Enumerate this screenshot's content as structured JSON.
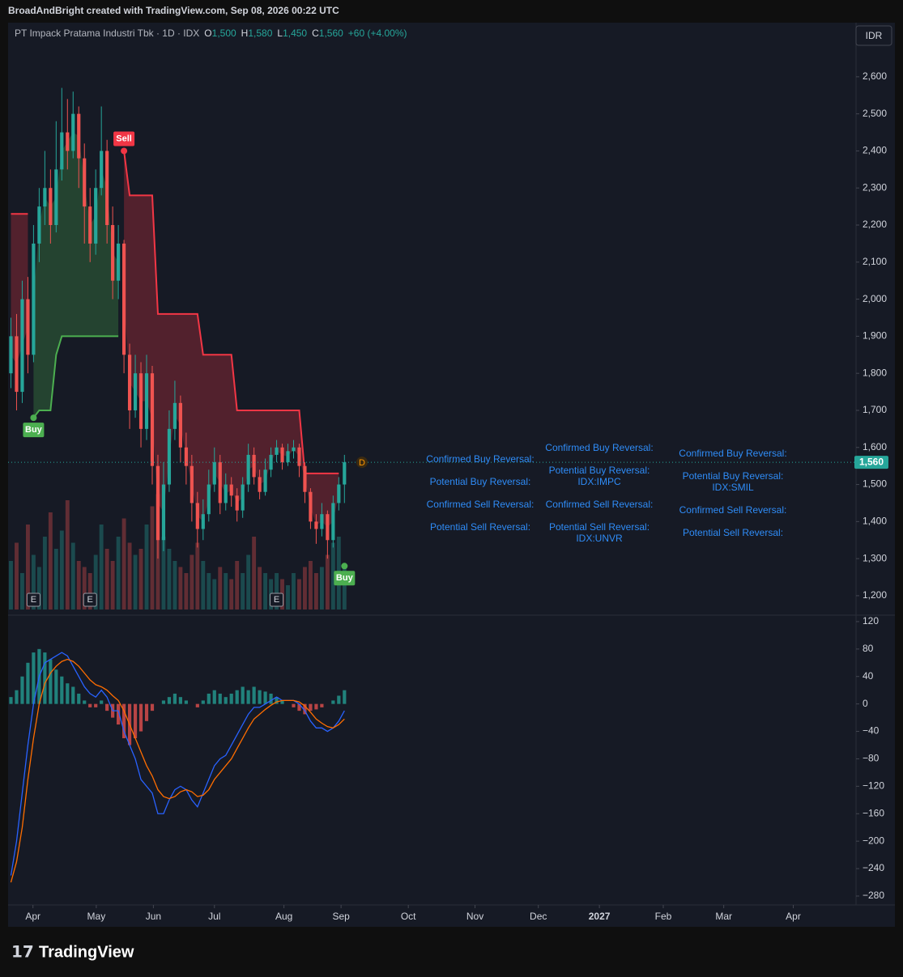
{
  "header": {
    "credit": "BroadAndBright created with TradingView.com, Sep 08, 2026 00:22 UTC"
  },
  "footer": {
    "brand": "TradingView"
  },
  "currency": "IDR",
  "screener": [
    [
      [
        "Confirmed Buy Reversal:"
      ],
      [
        "Potential Buy Reversal:"
      ],
      [
        "Confirmed Sell Reversal:"
      ],
      [
        "Potential Sell Reversal:"
      ]
    ],
    [
      [
        "Confirmed Buy Reversal:"
      ],
      [
        "Potential Buy Reversal:",
        "IDX:IMPC"
      ],
      [
        "Confirmed Sell Reversal:"
      ],
      [
        "Potential Sell Reversal:",
        "IDX:UNVR"
      ]
    ],
    [
      [
        "Confirmed Buy Reversal:"
      ],
      [
        "Potential Buy Reversal:",
        "IDX:SMIL"
      ],
      [
        "Confirmed Sell Reversal:"
      ],
      [
        "Potential Sell Reversal:"
      ]
    ]
  ],
  "chart_data": {
    "type": "candlestick",
    "legend": {
      "title": "PT Impack Pratama Industri Tbk · 1D · IDX",
      "items": [
        {
          "key": "O",
          "value": 1500,
          "label": "1,500"
        },
        {
          "key": "H",
          "value": 1580,
          "label": "1,580"
        },
        {
          "key": "L",
          "value": 1450,
          "label": "1,450"
        },
        {
          "key": "C",
          "value": 1560,
          "label": "1,560"
        }
      ],
      "change": "+60 (+4.00%)"
    },
    "up_color": "#26a69a",
    "down_color": "#ef5350",
    "x": [
      0,
      1,
      2,
      3,
      4,
      5,
      6,
      7,
      8,
      9,
      10,
      11,
      12,
      13,
      14,
      15,
      16,
      17,
      18,
      19,
      20,
      21,
      22,
      23,
      24,
      25,
      26,
      27,
      28,
      29,
      30,
      31,
      32,
      33,
      34,
      35,
      36,
      37,
      38,
      39,
      40,
      41,
      42,
      43,
      44,
      45,
      46,
      47,
      48,
      49,
      50,
      51,
      52,
      53,
      54,
      55,
      56,
      57,
      58,
      59
    ],
    "open": [
      1800,
      1900,
      1750,
      2000,
      1850,
      2150,
      2250,
      2300,
      2200,
      2350,
      2450,
      2400,
      2500,
      2380,
      2250,
      2150,
      2300,
      2400,
      2200,
      2050,
      2150,
      1850,
      1700,
      1800,
      1650,
      1800,
      1550,
      1350,
      1500,
      1650,
      1720,
      1600,
      1550,
      1450,
      1380,
      1420,
      1500,
      1560,
      1450,
      1500,
      1470,
      1430,
      1500,
      1580,
      1520,
      1480,
      1540,
      1580,
      1600,
      1560,
      1590,
      1600,
      1550,
      1480,
      1400,
      1380,
      1420,
      1350,
      1450,
      1500
    ],
    "high": [
      1950,
      1960,
      2050,
      2060,
      2200,
      2300,
      2400,
      2350,
      2480,
      2570,
      2540,
      2560,
      2520,
      2420,
      2300,
      2350,
      2520,
      2430,
      2250,
      2200,
      2160,
      1880,
      1850,
      1830,
      1850,
      1820,
      1580,
      1560,
      1700,
      1780,
      1740,
      1640,
      1580,
      1480,
      1460,
      1540,
      1600,
      1580,
      1530,
      1520,
      1490,
      1520,
      1610,
      1600,
      1540,
      1570,
      1600,
      1620,
      1610,
      1610,
      1620,
      1610,
      1560,
      1490,
      1420,
      1450,
      1430,
      1470,
      1520,
      1580
    ],
    "low": [
      1760,
      1700,
      1720,
      1800,
      1830,
      2100,
      2200,
      2150,
      2180,
      2320,
      2350,
      2380,
      2300,
      2150,
      2100,
      2120,
      2280,
      2150,
      2000,
      2000,
      1800,
      1650,
      1680,
      1600,
      1620,
      1500,
      1300,
      1320,
      1480,
      1620,
      1560,
      1500,
      1400,
      1330,
      1350,
      1400,
      1480,
      1420,
      1430,
      1440,
      1400,
      1410,
      1480,
      1500,
      1460,
      1470,
      1520,
      1560,
      1540,
      1550,
      1570,
      1520,
      1450,
      1380,
      1340,
      1360,
      1300,
      1330,
      1430,
      1450
    ],
    "close": [
      1900,
      1750,
      2000,
      1850,
      2150,
      2250,
      2300,
      2200,
      2350,
      2450,
      2400,
      2500,
      2380,
      2250,
      2150,
      2300,
      2400,
      2200,
      2050,
      2150,
      1850,
      1700,
      1800,
      1650,
      1800,
      1550,
      1350,
      1500,
      1650,
      1720,
      1600,
      1550,
      1450,
      1380,
      1420,
      1500,
      1560,
      1450,
      1500,
      1470,
      1430,
      1500,
      1580,
      1520,
      1480,
      1540,
      1580,
      1600,
      1560,
      1590,
      1600,
      1550,
      1480,
      1400,
      1380,
      1420,
      1350,
      1450,
      1500,
      1560
    ],
    "price_label": "1,560",
    "volume": [
      40,
      55,
      30,
      70,
      45,
      35,
      60,
      80,
      50,
      65,
      90,
      55,
      40,
      35,
      30,
      45,
      70,
      50,
      40,
      60,
      75,
      55,
      45,
      50,
      70,
      85,
      95,
      60,
      50,
      40,
      35,
      30,
      45,
      55,
      40,
      30,
      25,
      35,
      30,
      25,
      40,
      30,
      45,
      60,
      35,
      30,
      25,
      30,
      25,
      20,
      30,
      25,
      35,
      40,
      30,
      35,
      45,
      55,
      60,
      35
    ],
    "volume_lim": [
      0,
      100
    ],
    "supertrend": {
      "up_color": "#4caf50",
      "down_color": "#f23645",
      "up": [
        null,
        null,
        null,
        null,
        1680,
        1700,
        1700,
        1700,
        1850,
        1900,
        1900,
        1900,
        1900,
        1900,
        1900,
        1900,
        1900,
        1900,
        1900,
        1900,
        null,
        null,
        null,
        null,
        null,
        null,
        null,
        null,
        null,
        null,
        null,
        null,
        null,
        null,
        null,
        null,
        null,
        null,
        null,
        null,
        null,
        null,
        null,
        null,
        null,
        null,
        null,
        null,
        null,
        null,
        null,
        null,
        null,
        null,
        null,
        null,
        null,
        null,
        null,
        1280
      ],
      "down": [
        2230,
        2230,
        2230,
        2230,
        null,
        null,
        null,
        null,
        null,
        null,
        null,
        null,
        null,
        null,
        null,
        null,
        null,
        null,
        null,
        null,
        2400,
        2280,
        2280,
        2280,
        2280,
        2280,
        1960,
        1960,
        1960,
        1960,
        1960,
        1960,
        1960,
        1960,
        1850,
        1850,
        1850,
        1850,
        1850,
        1850,
        1700,
        1700,
        1700,
        1700,
        1700,
        1700,
        1700,
        1700,
        1700,
        1700,
        1700,
        1700,
        1530,
        1530,
        1530,
        1530,
        1530,
        1530,
        1530,
        null
      ]
    },
    "signals": [
      {
        "x": 4,
        "value": 1680,
        "label": "Buy"
      },
      {
        "x": 20,
        "value": 2400,
        "label": "Sell"
      },
      {
        "x": 59,
        "value": 1280,
        "label": "Buy"
      }
    ],
    "events": [
      {
        "x": 4,
        "label": "E"
      },
      {
        "x": 14,
        "label": "E"
      },
      {
        "x": 47,
        "label": "E"
      }
    ],
    "dividend_marker": "D",
    "xlim": [
      -0.5,
      149.5
    ],
    "xticks": [
      {
        "value": 3.9,
        "label": "Apr"
      },
      {
        "value": 15.1,
        "label": "May"
      },
      {
        "value": 25.2,
        "label": "Jun"
      },
      {
        "value": 36,
        "label": "Jul"
      },
      {
        "value": 48.3,
        "label": "Aug"
      },
      {
        "value": 58.4,
        "label": "Sep"
      },
      {
        "value": 70.3,
        "label": "Oct"
      },
      {
        "value": 82.1,
        "label": "Nov"
      },
      {
        "value": 93.3,
        "label": "Dec"
      },
      {
        "value": 104.1,
        "label": "2027"
      },
      {
        "value": 115.4,
        "label": "Feb"
      },
      {
        "value": 126.1,
        "label": "Mar"
      },
      {
        "value": 138.4,
        "label": "Apr"
      }
    ],
    "ylim": [
      1154,
      2746
    ],
    "yticks": [
      {
        "value": 1200,
        "label": "1,200"
      },
      {
        "value": 1300,
        "label": "1,300"
      },
      {
        "value": 1400,
        "label": "1,400"
      },
      {
        "value": 1500,
        "label": "1,500"
      },
      {
        "value": 1600,
        "label": "1,600"
      },
      {
        "value": 1700,
        "label": "1,700"
      },
      {
        "value": 1800,
        "label": "1,800"
      },
      {
        "value": 1900,
        "label": "1,900"
      },
      {
        "value": 2000,
        "label": "2,000"
      },
      {
        "value": 2100,
        "label": "2,100"
      },
      {
        "value": 2200,
        "label": "2,200"
      },
      {
        "value": 2300,
        "label": "2,300"
      },
      {
        "value": 2400,
        "label": "2,400"
      },
      {
        "value": 2500,
        "label": "2,500"
      },
      {
        "value": 2600,
        "label": "2,600"
      }
    ],
    "grid": false,
    "macd_ylim": [
      -293,
      127
    ],
    "macd_yticks": [
      120,
      80,
      40,
      0,
      {
        "value": -40,
        "label": "−40"
      },
      {
        "value": -80,
        "label": "−80"
      },
      {
        "value": -120,
        "label": "−120"
      },
      {
        "value": -160,
        "label": "−160"
      },
      {
        "value": -200,
        "label": "−200"
      },
      {
        "value": -240,
        "label": "−240"
      },
      {
        "value": -280,
        "label": "−280"
      }
    ],
    "macd": {
      "color": "#2962ff",
      "values": [
        -250,
        -200,
        -130,
        -60,
        0,
        40,
        60,
        65,
        70,
        75,
        70,
        55,
        40,
        25,
        15,
        10,
        20,
        10,
        -10,
        -10,
        -40,
        -60,
        -80,
        -110,
        -120,
        -130,
        -160,
        -160,
        -140,
        -125,
        -120,
        -125,
        -140,
        -150,
        -130,
        -110,
        -90,
        -80,
        -75,
        -60,
        -45,
        -30,
        -15,
        -5,
        -5,
        0,
        5,
        10,
        5,
        5,
        5,
        0,
        -10,
        -25,
        -35,
        -35,
        -40,
        -35,
        -25,
        -10
      ]
    },
    "signal": {
      "color": "#ff6d00",
      "values": [
        -260,
        -230,
        -180,
        -110,
        -50,
        0,
        30,
        45,
        55,
        62,
        65,
        62,
        55,
        45,
        35,
        28,
        25,
        20,
        12,
        5,
        -10,
        -30,
        -50,
        -70,
        -90,
        -105,
        -125,
        -135,
        -138,
        -135,
        -128,
        -125,
        -128,
        -135,
        -133,
        -125,
        -110,
        -100,
        -90,
        -80,
        -65,
        -50,
        -35,
        -22,
        -15,
        -8,
        -2,
        3,
        5,
        5,
        5,
        3,
        -3,
        -12,
        -22,
        -28,
        -33,
        -35,
        -30,
        -22
      ]
    },
    "histogram": {
      "up_color": "#26a69a",
      "down_color": "#ef5350",
      "values": [
        10,
        20,
        40,
        60,
        75,
        80,
        75,
        65,
        50,
        40,
        30,
        25,
        15,
        5,
        -5,
        -5,
        5,
        -10,
        -20,
        -30,
        -50,
        -60,
        -50,
        -40,
        -25,
        -10,
        0,
        5,
        10,
        15,
        10,
        5,
        0,
        -5,
        5,
        15,
        20,
        15,
        10,
        15,
        20,
        25,
        20,
        25,
        20,
        18,
        15,
        10,
        5,
        0,
        -5,
        -10,
        -15,
        -10,
        -8,
        -5,
        0,
        5,
        12,
        20
      ]
    }
  }
}
